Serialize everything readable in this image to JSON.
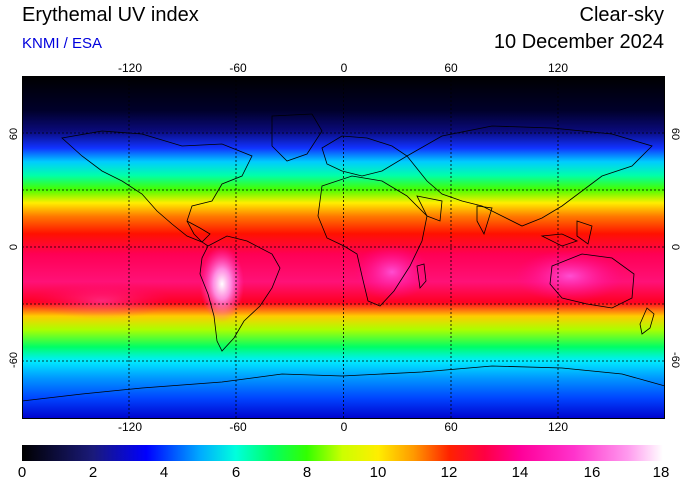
{
  "header": {
    "title": "Erythemal UV index",
    "credit": "KNMI / ESA",
    "condition": "Clear-sky",
    "date": "10 December 2024"
  },
  "map": {
    "longitude_labels": [
      "-120",
      "-60",
      "0",
      "60",
      "120"
    ],
    "latitude_labels": [
      "60",
      "0",
      "-60"
    ],
    "longitude_values": [
      -120,
      -60,
      0,
      60,
      120
    ],
    "latitude_values": [
      60,
      0,
      -60
    ],
    "lon_range": [
      -180,
      180
    ],
    "lat_range": [
      -90,
      90
    ],
    "gridlines": true
  },
  "colorbar": {
    "labels": [
      "0",
      "2",
      "4",
      "6",
      "8",
      "10",
      "12",
      "14",
      "16",
      "18"
    ],
    "min": 0,
    "max": 18,
    "stops": [
      {
        "value": 0,
        "color": "#000000"
      },
      {
        "value": 2,
        "color": "#1a1a7a"
      },
      {
        "value": 3.5,
        "color": "#0000ff"
      },
      {
        "value": 5,
        "color": "#00aaff"
      },
      {
        "value": 6,
        "color": "#00ffdd"
      },
      {
        "value": 7,
        "color": "#00ff66"
      },
      {
        "value": 8,
        "color": "#33ff00"
      },
      {
        "value": 9,
        "color": "#ccff00"
      },
      {
        "value": 10,
        "color": "#ffee00"
      },
      {
        "value": 11,
        "color": "#ff9900"
      },
      {
        "value": 12,
        "color": "#ff2200"
      },
      {
        "value": 13,
        "color": "#ff0044"
      },
      {
        "value": 14,
        "color": "#ff0099"
      },
      {
        "value": 15.5,
        "color": "#ff33cc"
      },
      {
        "value": 17,
        "color": "#ff99ee"
      },
      {
        "value": 18,
        "color": "#ffffff"
      }
    ]
  }
}
